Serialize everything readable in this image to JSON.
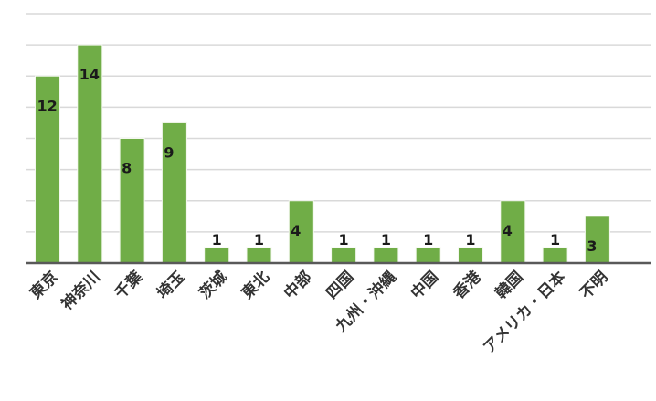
{
  "chart_data": {
    "type": "bar",
    "title": "",
    "xlabel": "",
    "ylabel": "",
    "categories": [
      "東京",
      "神奈川",
      "千葉",
      "埼玉",
      "茨城",
      "東北",
      "中部",
      "四国",
      "九州・沖縄",
      "中国",
      "香港",
      "韓国",
      "アメリカ・日本",
      "不明"
    ],
    "values": [
      12,
      14,
      8,
      9,
      1,
      1,
      4,
      1,
      1,
      1,
      1,
      4,
      1,
      3
    ],
    "data_labels": [
      "12",
      "14",
      "8",
      "9",
      "1",
      "1",
      "4",
      "1",
      "1",
      "1",
      "1",
      "4",
      "1",
      "3"
    ],
    "ylim": [
      0,
      16
    ],
    "grid": true,
    "legend": "none",
    "bar_color": "#70ad47",
    "grid_color": "#d9d9d9",
    "axis_color": "#595959"
  }
}
